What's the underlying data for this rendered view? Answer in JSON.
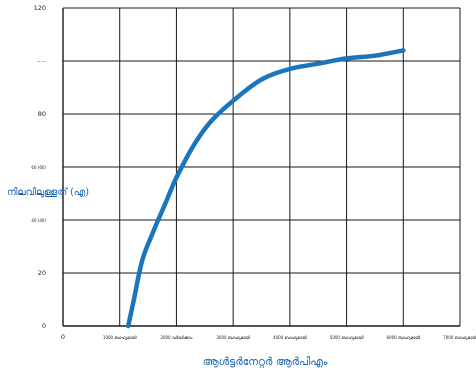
{
  "chart_data": {
    "type": "line",
    "xlabel": "ആൾട്ടർനേറ്റർ ആർപിഎം",
    "ylabel": "നിലവിലുള്ളത് (എ)",
    "xlim": [
      0,
      7000
    ],
    "ylim": [
      0,
      120
    ],
    "grid": true,
    "series_color": "#1a75bc",
    "grid_color": "#1a1a1a",
    "x_ticks": [
      {
        "value": 0,
        "label": "0"
      },
      {
        "value": 1000,
        "label": "1000 ബാഹ്യമായി"
      },
      {
        "value": 2000,
        "label": "2000 വർദ്ധിക്കാം"
      },
      {
        "value": 3000,
        "label": "3000 ബാഹ്യമായി"
      },
      {
        "value": 4000,
        "label": "4000 ബാഹ്യമായി"
      },
      {
        "value": 5000,
        "label": "5000 ബാഹ്യമായി"
      },
      {
        "value": 6000,
        "label": "6000 ബാഹ്യമായി"
      },
      {
        "value": 7000,
        "label": "7000 ബാഹ്യമായി"
      }
    ],
    "y_ticks": [
      {
        "value": 0,
        "label": "0"
      },
      {
        "value": 20,
        "label": "20"
      },
      {
        "value": 40,
        "label": "40 (40)"
      },
      {
        "value": 60,
        "label": "60 (60)"
      },
      {
        "value": 80,
        "label": "80"
      },
      {
        "value": 100,
        "label": "— —"
      },
      {
        "value": 120,
        "label": "120"
      }
    ],
    "series": [
      {
        "x": [
          1150,
          1250,
          1400,
          1600,
          1800,
          2000,
          2300,
          2600,
          3000,
          3500,
          4000,
          4500,
          5000,
          5500,
          6000
        ],
        "y": [
          0,
          10,
          25,
          36,
          46,
          56,
          68,
          77,
          85,
          93,
          97,
          99,
          101,
          102,
          104
        ]
      }
    ]
  }
}
